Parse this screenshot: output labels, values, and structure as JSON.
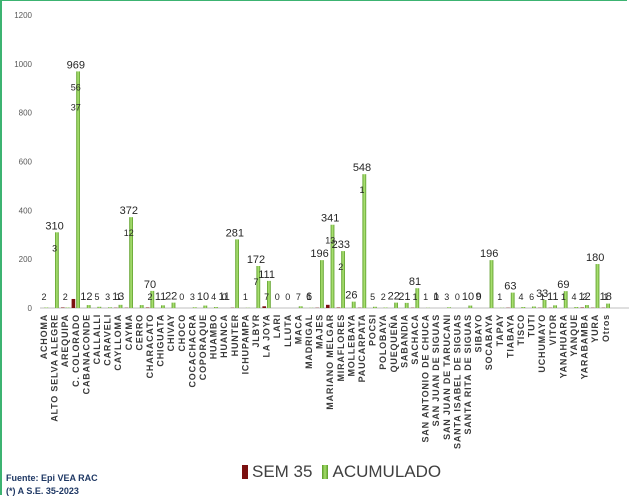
{
  "chart_data": {
    "type": "bar",
    "categories": [
      "ACHOMA",
      "ALTO SELVA ALEGRE",
      "AREQUIPA",
      "C. COLORADO",
      "CABANACONDE",
      "CALLALLI",
      "CARAVELI",
      "CAYLLOMA",
      "CAYMA",
      "CERRO",
      "CHARACATO",
      "CHIGUATA",
      "CHIVAY",
      "CHOCO",
      "COCACHACRA",
      "COPORAQUE",
      "HUAMBO",
      "HUANCA",
      "HUNTER",
      "ICHUPAMPA",
      "JLBYR",
      "LA JOYA",
      "LARI",
      "LLUTA",
      "MACA",
      "MADRIGAL",
      "MAJES",
      "MARIANO MELGAR",
      "MIRAFLORES",
      "MOLLEBAYA",
      "PAUCARPATA",
      "POCSI",
      "POLOBAYA",
      "QUEQUEÑA",
      "SABANDIA",
      "SACHACA",
      "SAN ANTONIO DE CHUCA",
      "SAN JUAN DE SIGUAS",
      "SAN JUAN DE TARUCANI",
      "SANTA ISABEL DE SIGUAS",
      "SANTA RITA DE SIGUAS",
      "SIBAYO",
      "SOCABAYA",
      "TAPAY",
      "TIABAYA",
      "TISCO",
      "TUTI",
      "UCHUMAYO",
      "VITOR",
      "YANAHUARA",
      "YANQUE",
      "YARABAMBA",
      "YURA",
      "Otros"
    ],
    "series": [
      {
        "name": "SEM 35",
        "color": "#7b1010",
        "values": [
          0,
          0,
          2,
          37,
          0,
          0,
          0,
          1,
          1,
          0,
          2,
          0,
          0,
          0,
          0,
          0,
          0,
          0,
          1,
          0,
          0,
          7,
          0,
          0,
          0,
          0,
          1,
          13,
          2,
          0,
          1,
          0,
          0,
          0,
          0,
          1,
          0,
          0,
          0,
          0,
          0,
          0,
          0,
          0,
          1,
          0,
          0,
          1,
          1,
          0,
          0,
          2,
          1,
          1
        ]
      },
      {
        "name": "ACUMULADO",
        "color": "#7cc142",
        "values": [
          2,
          310,
          2,
          969,
          12,
          5,
          3,
          13,
          372,
          12,
          70,
          11,
          22,
          0,
          3,
          10,
          4,
          0,
          281,
          1,
          172,
          111,
          0,
          0,
          7,
          1,
          196,
          341,
          233,
          26,
          548,
          5,
          2,
          22,
          21,
          81,
          1,
          0,
          3,
          0,
          10,
          0,
          196,
          1,
          63,
          4,
          6,
          33,
          11,
          69,
          4,
          12,
          180,
          18
        ]
      }
    ],
    "labels": [
      {
        "i": 0,
        "t": "2"
      },
      {
        "i": 1,
        "t": "3"
      },
      {
        "i": 1,
        "t": "310"
      },
      {
        "i": 2,
        "t": "2"
      },
      {
        "i": 3,
        "t": "56"
      },
      {
        "i": 3,
        "t": "969"
      },
      {
        "i": 3,
        "t": "37"
      },
      {
        "i": 4,
        "t": "12"
      },
      {
        "i": 5,
        "t": "5"
      },
      {
        "i": 6,
        "t": "3"
      },
      {
        "i": 7,
        "t": "13"
      },
      {
        "i": 7,
        "t": "1"
      },
      {
        "i": 8,
        "t": "12"
      },
      {
        "i": 8,
        "t": "372"
      },
      {
        "i": 10,
        "t": "2"
      },
      {
        "i": 10,
        "t": "70"
      },
      {
        "i": 11,
        "t": "11"
      },
      {
        "i": 12,
        "t": "22"
      },
      {
        "i": 13,
        "t": "0"
      },
      {
        "i": 14,
        "t": "3"
      },
      {
        "i": 15,
        "t": "10"
      },
      {
        "i": 16,
        "t": "4"
      },
      {
        "i": 17,
        "t": "0"
      },
      {
        "i": 17,
        "t": "11"
      },
      {
        "i": 18,
        "t": "281"
      },
      {
        "i": 19,
        "t": "1"
      },
      {
        "i": 20,
        "t": "7"
      },
      {
        "i": 20,
        "t": "172"
      },
      {
        "i": 21,
        "t": "7"
      },
      {
        "i": 21,
        "t": "111"
      },
      {
        "i": 22,
        "t": "0"
      },
      {
        "i": 23,
        "t": "0"
      },
      {
        "i": 24,
        "t": "7"
      },
      {
        "i": 25,
        "t": "1"
      },
      {
        "i": 25,
        "t": "6"
      },
      {
        "i": 26,
        "t": "196"
      },
      {
        "i": 27,
        "t": "13"
      },
      {
        "i": 27,
        "t": "341"
      },
      {
        "i": 28,
        "t": "2"
      },
      {
        "i": 28,
        "t": "233"
      },
      {
        "i": 29,
        "t": "26"
      },
      {
        "i": 30,
        "t": "1"
      },
      {
        "i": 30,
        "t": "548"
      },
      {
        "i": 31,
        "t": "5"
      },
      {
        "i": 32,
        "t": "2"
      },
      {
        "i": 33,
        "t": "22"
      },
      {
        "i": 34,
        "t": "21"
      },
      {
        "i": 35,
        "t": "1"
      },
      {
        "i": 35,
        "t": "81"
      },
      {
        "i": 36,
        "t": "1"
      },
      {
        "i": 37,
        "t": "0"
      },
      {
        "i": 37,
        "t": "1"
      },
      {
        "i": 38,
        "t": "3"
      },
      {
        "i": 39,
        "t": "0"
      },
      {
        "i": 40,
        "t": "10"
      },
      {
        "i": 41,
        "t": "0"
      },
      {
        "i": 41,
        "t": "9"
      },
      {
        "i": 42,
        "t": "196"
      },
      {
        "i": 43,
        "t": "1"
      },
      {
        "i": 44,
        "t": "63"
      },
      {
        "i": 45,
        "t": "4"
      },
      {
        "i": 46,
        "t": "6"
      },
      {
        "i": 47,
        "t": "1"
      },
      {
        "i": 47,
        "t": "33"
      },
      {
        "i": 48,
        "t": "11"
      },
      {
        "i": 49,
        "t": "1"
      },
      {
        "i": 49,
        "t": "69"
      },
      {
        "i": 50,
        "t": "4"
      },
      {
        "i": 51,
        "t": "12"
      },
      {
        "i": 51,
        "t": "2"
      },
      {
        "i": 52,
        "t": "180"
      },
      {
        "i": 53,
        "t": "1"
      },
      {
        "i": 53,
        "t": "18"
      }
    ],
    "yticks": [
      0,
      200,
      400,
      600,
      800,
      1000,
      1200
    ],
    "ylim": [
      0,
      1200
    ],
    "grid": false,
    "legend_position": "bottom"
  },
  "footer": {
    "source": "Fuente: Epi VEA RAC",
    "note": "(*) A S.E. 35-2023"
  }
}
